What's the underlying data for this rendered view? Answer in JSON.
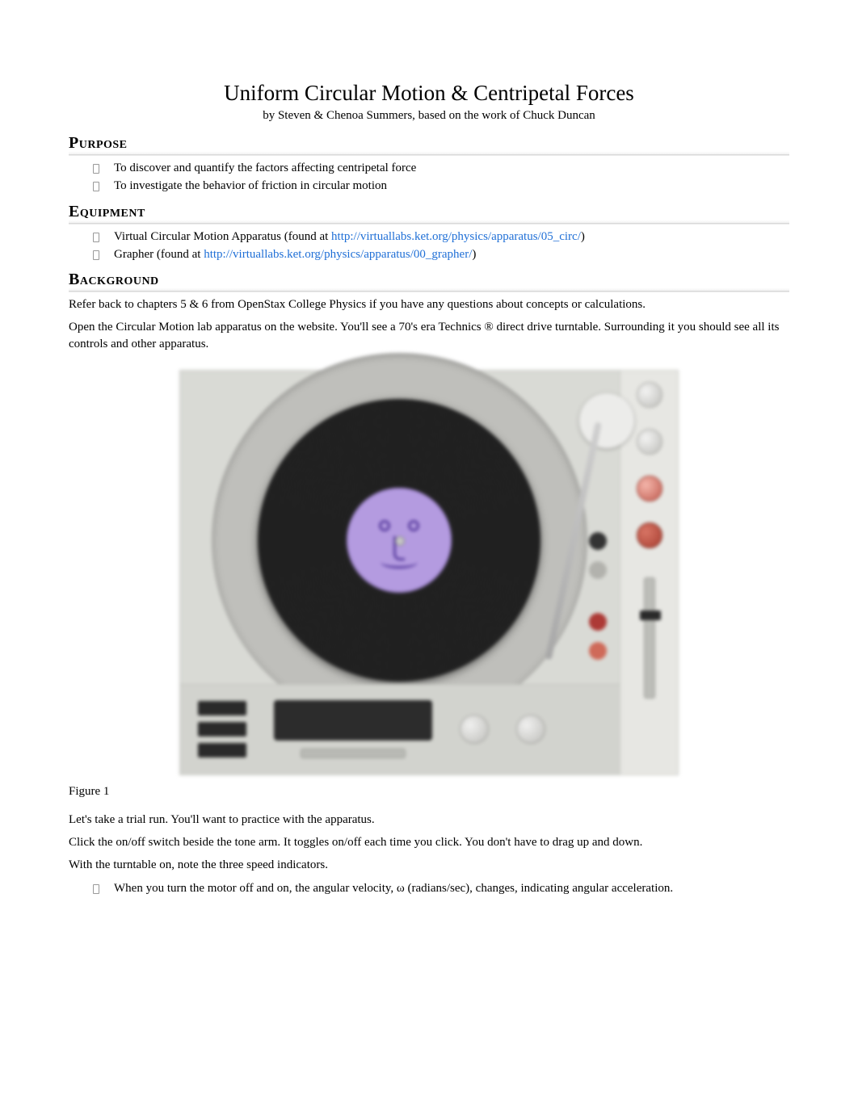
{
  "title": "Uniform Circular Motion & Centripetal Forces",
  "subtitle": "by Steven & Chenoa Summers, based on the work of Chuck Duncan",
  "sections": {
    "purpose": {
      "heading": "Purpose",
      "items": [
        "To discover and quantify the factors affecting centripetal force",
        "To investigate the behavior of friction in circular motion"
      ]
    },
    "equipment": {
      "heading": "Equipment",
      "items": [
        {
          "prefix": "Virtual Circular Motion Apparatus (found at ",
          "link": "http://virtuallabs.ket.org/physics/apparatus/05_circ/",
          "suffix": ")"
        },
        {
          "prefix": "Grapher (found at ",
          "link": "http://virtuallabs.ket.org/physics/apparatus/00_grapher/",
          "suffix": ")"
        }
      ]
    },
    "background": {
      "heading": "Background",
      "para1": "Refer back to chapters 5 & 6 from OpenStax College Physics if you have any questions about concepts or calculations.",
      "para2": "Open the Circular Motion lab apparatus on the website. You'll see a 70's era Technics ® direct drive turntable. Surrounding it you should see all its controls and other apparatus."
    }
  },
  "figure": {
    "caption": "Figure 1",
    "colors": {
      "panel": "#d9dad5",
      "platter": "#bfbfbb",
      "record": "#1b1b1b",
      "label": "#b49be0",
      "button_dark": "#2a2a2a",
      "knob_red": "#c05a4e"
    }
  },
  "body": {
    "p1": "Let's take a trial run. You'll want to practice with the apparatus.",
    "p2": "Click the on/off switch beside the tone arm. It toggles on/off each time you click. You don't have to drag up and down.",
    "p3": "With the turntable on, note the three speed indicators.",
    "bullet": "When you turn the motor off and on, the angular velocity, ω (radians/sec), changes, indicating angular acceleration."
  },
  "link_color": "#1f6fd6"
}
